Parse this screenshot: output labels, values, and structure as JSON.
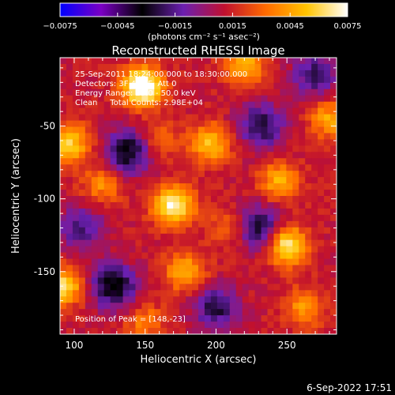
{
  "chart_data": {
    "type": "heatmap",
    "title": "Reconstructed RHESSI Image",
    "xlabel": "Heliocentric X (arcsec)",
    "ylabel": "Heliocentric Y (arcsec)",
    "xlim": [
      90,
      285
    ],
    "ylim": [
      -193,
      -3
    ],
    "xticks": [
      "100",
      "150",
      "200",
      "250"
    ],
    "xtick_values": [
      100,
      150,
      200,
      250
    ],
    "yticks": [
      "-50",
      "-100",
      "-150"
    ],
    "ytick_values": [
      -50,
      -100,
      -150
    ],
    "colorbar": {
      "min": -0.0075,
      "max": 0.0075,
      "tick_labels": [
        "−0.0075",
        "−0.0045",
        "−0.0015",
        "0.0015",
        "0.0045",
        "0.0075"
      ],
      "tick_values": [
        -0.0075,
        -0.0045,
        -0.0015,
        0.0015,
        0.0045,
        0.0075
      ],
      "unit_label": "(photons cm⁻² s⁻¹ asec⁻²)",
      "colors": [
        "#0000ff",
        "#7b00c4",
        "#000000",
        "#6b1fb0",
        "#c0102f",
        "#ff6a00",
        "#ffc400",
        "#ffffff"
      ]
    },
    "annotations": [
      "25-Sep-2011 18:24:00.000 to 18:30:00.000",
      "Detectors: 3F 4F 5F, Att 0",
      "Energy Range: 25.0 - 50.0 keV",
      "Clean     Total Counts: 2.98E+04"
    ],
    "peak_label": "Position of Peak = [148,-23]",
    "peak": [
      148,
      -23
    ],
    "sources": [
      {
        "x": 148,
        "y": -23,
        "value": 0.0075
      },
      {
        "x": 170,
        "y": -105,
        "value": 0.0062
      },
      {
        "x": 250,
        "y": -132,
        "value": 0.0058
      },
      {
        "x": 96,
        "y": -62,
        "value": 0.0048
      },
      {
        "x": 196,
        "y": -62,
        "value": 0.0042
      },
      {
        "x": 220,
        "y": -8,
        "value": 0.004
      },
      {
        "x": 245,
        "y": -88,
        "value": 0.0036
      },
      {
        "x": 92,
        "y": -160,
        "value": 0.005
      },
      {
        "x": 178,
        "y": -150,
        "value": 0.0038
      },
      {
        "x": 280,
        "y": -45,
        "value": 0.0034
      },
      {
        "x": 262,
        "y": -175,
        "value": 0.003
      },
      {
        "x": 120,
        "y": -90,
        "value": 0.0028
      },
      {
        "x": 150,
        "y": -185,
        "value": 0.0024
      },
      {
        "x": 210,
        "y": -120,
        "value": 0.0022
      },
      {
        "x": 160,
        "y": -60,
        "value": 0.002
      }
    ],
    "dips": [
      {
        "x": 138,
        "y": -68,
        "value": 0.0046
      },
      {
        "x": 230,
        "y": -120,
        "value": 0.0044
      },
      {
        "x": 128,
        "y": -160,
        "value": 0.0048
      },
      {
        "x": 232,
        "y": -50,
        "value": 0.004
      },
      {
        "x": 200,
        "y": -175,
        "value": 0.0036
      },
      {
        "x": 270,
        "y": -15,
        "value": 0.0034
      },
      {
        "x": 105,
        "y": -120,
        "value": 0.003
      }
    ],
    "background": 0.0012
  },
  "footer": {
    "timestamp": "6-Sep-2022 17:51"
  }
}
